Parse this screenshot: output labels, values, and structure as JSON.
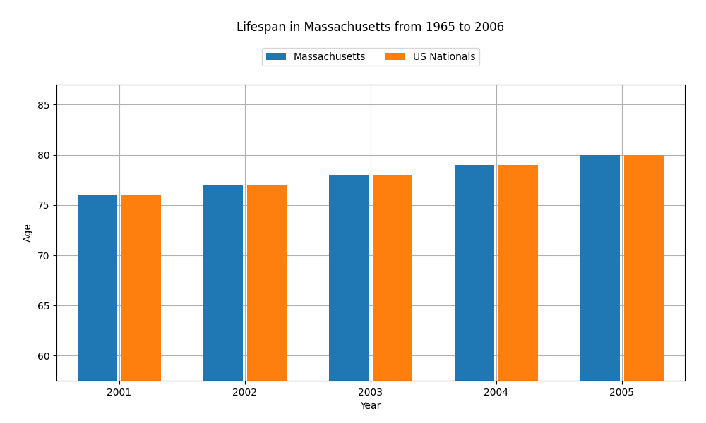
{
  "chart_data": {
    "type": "bar",
    "title": "Lifespan in Massachusetts from 1965 to 2006",
    "categories": [
      "2001",
      "2002",
      "2003",
      "2004",
      "2005"
    ],
    "series": [
      {
        "name": "Massachusetts",
        "values": [
          76,
          77,
          78,
          79,
          80
        ]
      },
      {
        "name": "US Nationals",
        "values": [
          76,
          77,
          78,
          79,
          80
        ]
      }
    ],
    "x_label": "Year",
    "y_label": "Age",
    "ylim": [
      57.5,
      87
    ],
    "yticks": [
      60,
      65,
      70,
      75,
      80,
      85
    ],
    "grid": true,
    "legend": "upper center"
  }
}
